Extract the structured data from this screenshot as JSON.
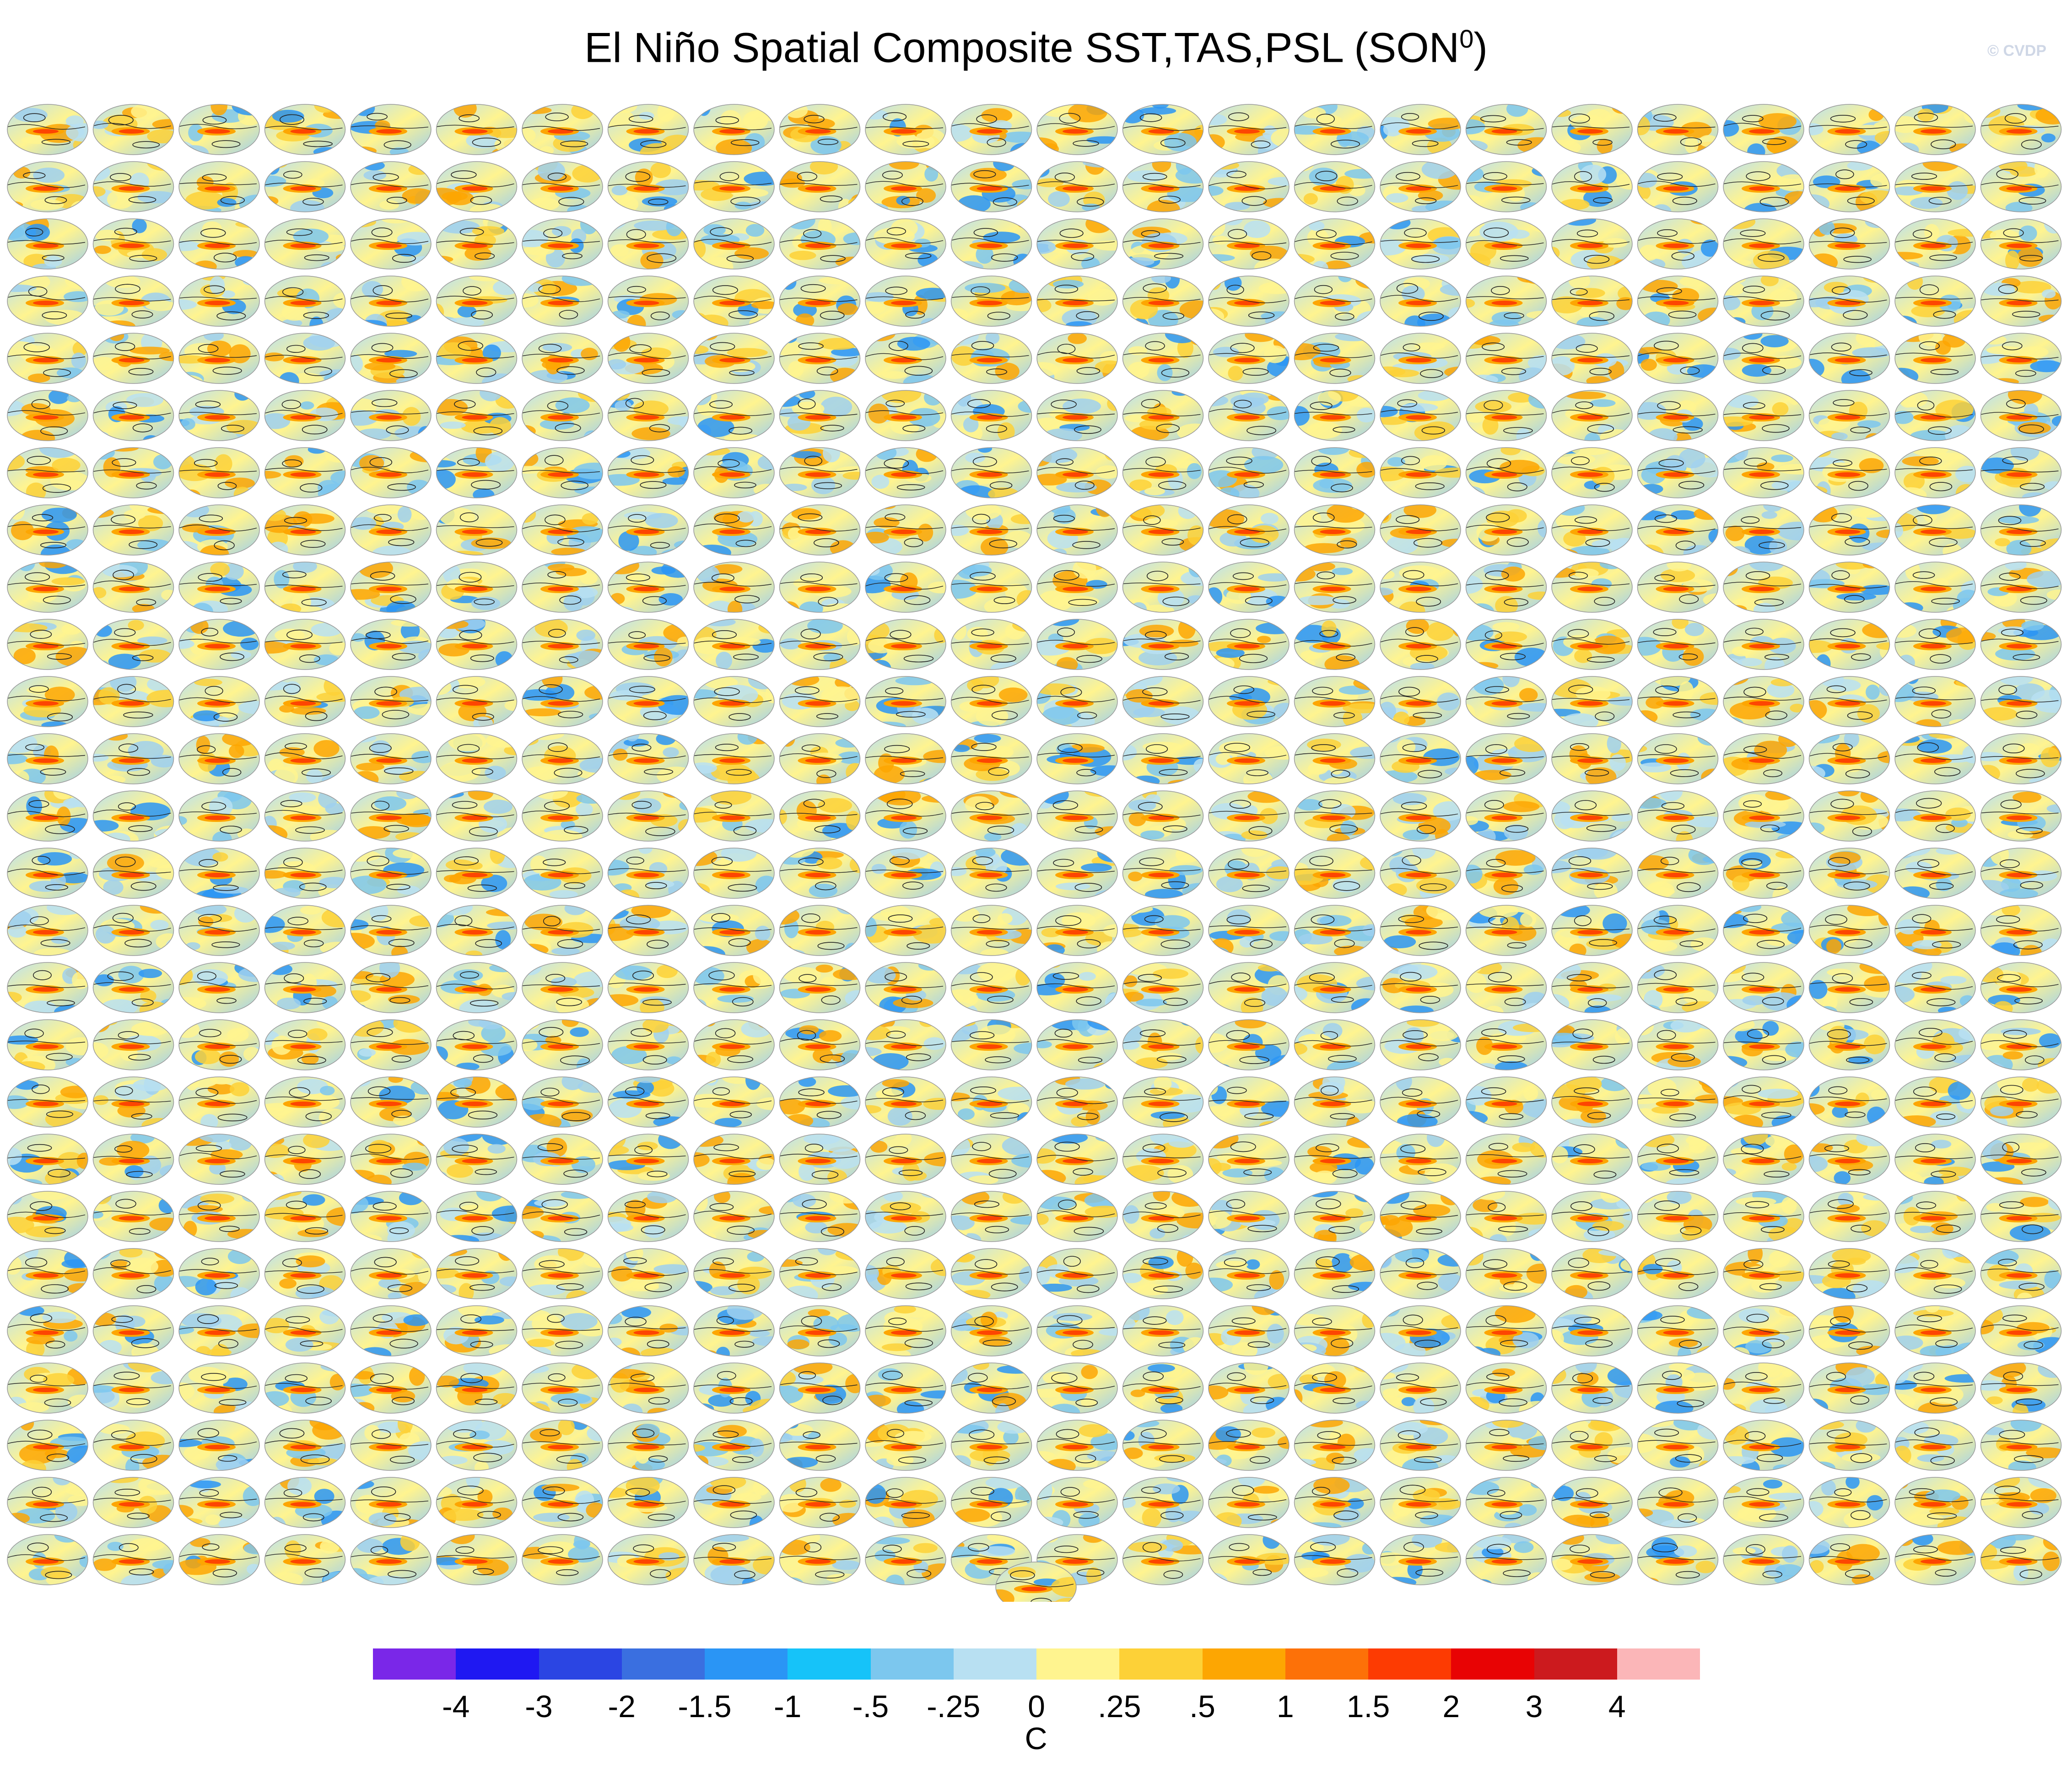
{
  "figure": {
    "title_main": "El Niño Spatial Composite SST,TAS,PSL (SON",
    "title_superscript": "0",
    "title_end": ")",
    "watermark": "© CVDP",
    "panel_grid": {
      "rows": 26,
      "cols": 24,
      "extra_panels": 1,
      "total_panels": 625
    }
  },
  "colorbar": {
    "colors": [
      "#7a27e8",
      "#1f18f2",
      "#2b45e3",
      "#3a6fe0",
      "#2a95f5",
      "#16c3f9",
      "#7cc7ee",
      "#b8e0f2",
      "#fff48f",
      "#fdd137",
      "#fda602",
      "#fd7108",
      "#fd3b02",
      "#e80304",
      "#cc1a1e",
      "#fbb6b8"
    ],
    "tick_labels": [
      "-4",
      "-3",
      "-2",
      "-1.5",
      "-1",
      "-.5",
      "-.25",
      "0",
      ".25",
      ".5",
      "1",
      "1.5",
      "2",
      "3",
      "4"
    ],
    "units": "C"
  }
}
